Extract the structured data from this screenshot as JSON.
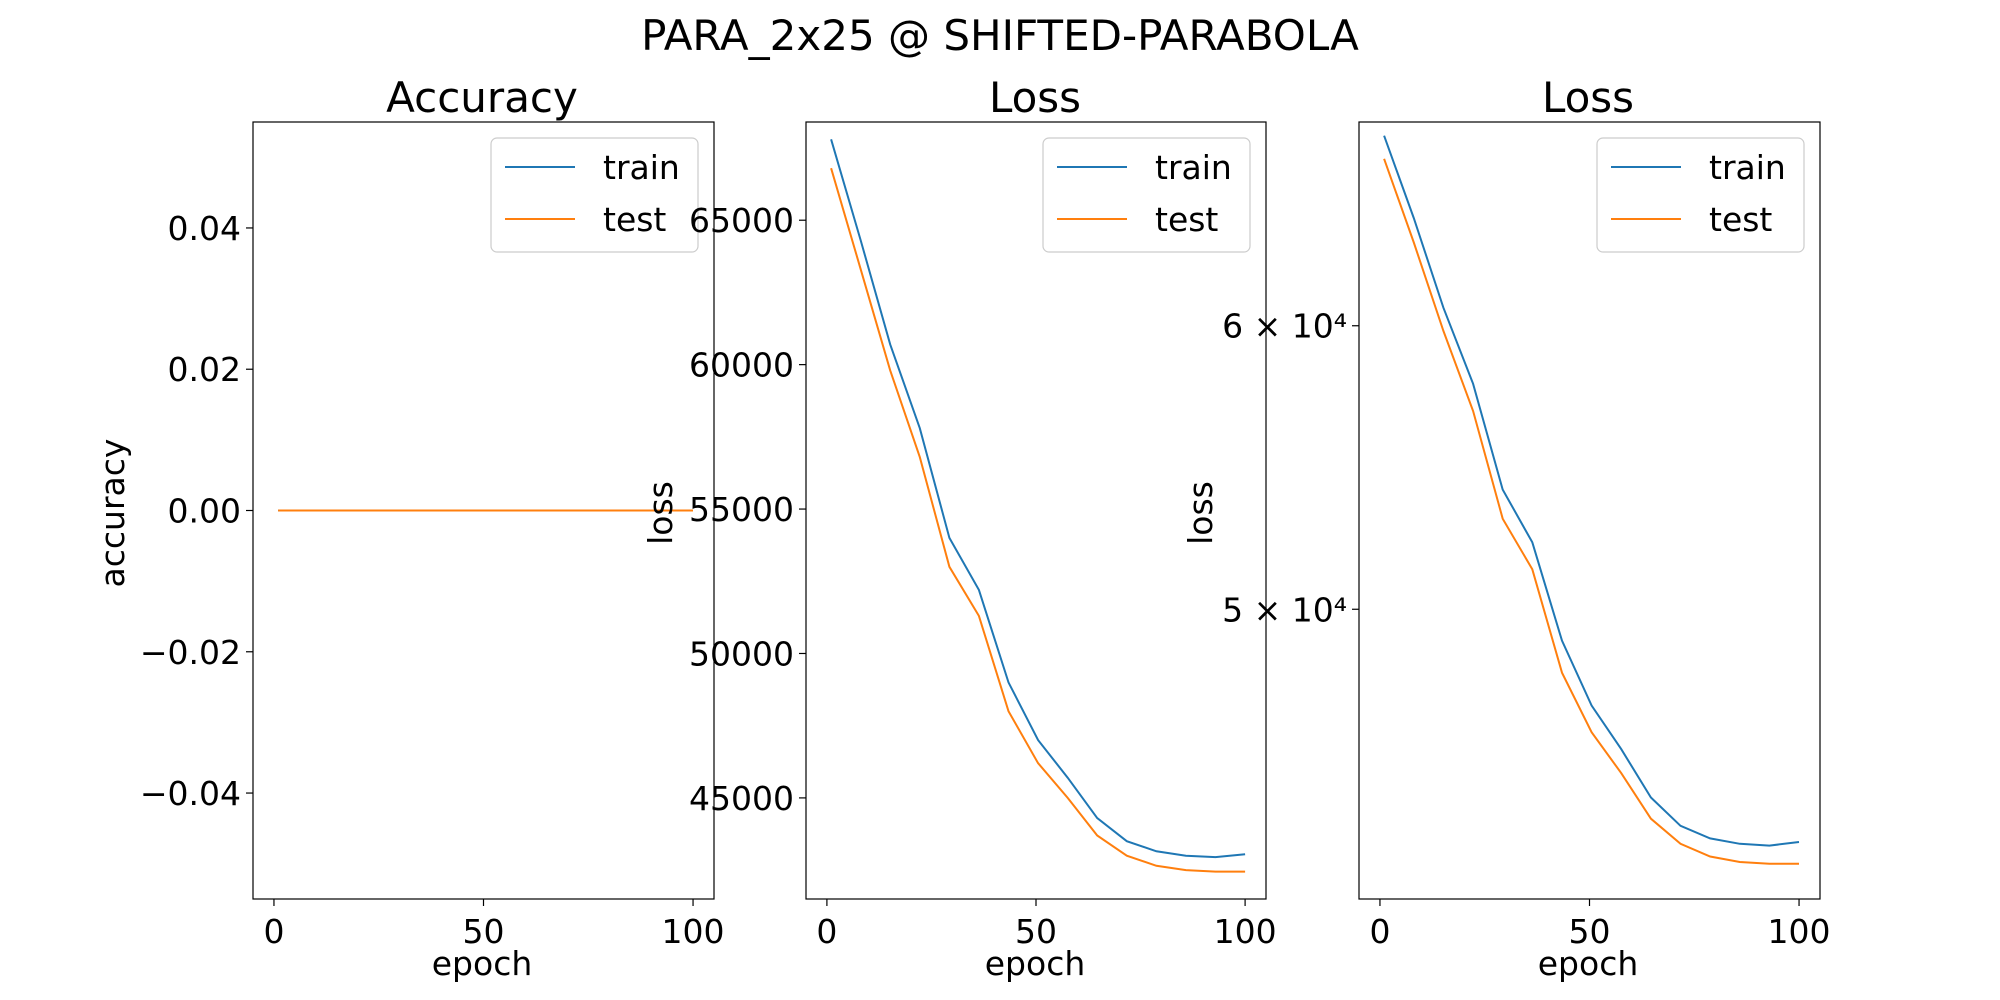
{
  "suptitle": "PARA_2x25 @ SHIFTED-PARABOLA",
  "colors": {
    "train": "#1f77b4",
    "test": "#ff7f0e",
    "axis": "#000000",
    "legend_border": "#cccccc"
  },
  "chart_data": [
    {
      "type": "line",
      "title": "Accuracy",
      "xlabel": "epoch",
      "ylabel": "accuracy",
      "xlim": [
        -5,
        105
      ],
      "ylim": [
        -0.055,
        0.055
      ],
      "yscale": "linear",
      "xticks": [
        0,
        50,
        100
      ],
      "xtick_labels": [
        "0",
        "50",
        "100"
      ],
      "yticks": [
        -0.04,
        -0.02,
        0.0,
        0.02,
        0.04
      ],
      "ytick_labels": [
        "−0.04",
        "−0.02",
        "0.00",
        "0.02",
        "0.04"
      ],
      "legend": "top-right",
      "series": [
        {
          "name": "train",
          "x_start": 1,
          "x_end": 100,
          "values": [
            0,
            0
          ]
        },
        {
          "name": "test",
          "x_start": 1,
          "x_end": 100,
          "values": [
            0,
            0
          ]
        }
      ]
    },
    {
      "type": "line",
      "title": "Loss",
      "xlabel": "epoch",
      "ylabel": "loss",
      "xlim": [
        -5,
        105
      ],
      "ylim": [
        41500,
        68400
      ],
      "yscale": "linear",
      "xticks": [
        0,
        50,
        100
      ],
      "xtick_labels": [
        "0",
        "50",
        "100"
      ],
      "yticks": [
        45000,
        50000,
        55000,
        60000,
        65000
      ],
      "ytick_labels": [
        "45000",
        "50000",
        "55000",
        "60000",
        "65000"
      ],
      "legend": "top-right",
      "series": [
        {
          "name": "train",
          "x_start": 1,
          "x_end": 100,
          "values": [
            67800,
            64300,
            60700,
            57800,
            54000,
            52200,
            49000,
            47000,
            45700,
            44300,
            43500,
            43150,
            43000,
            42950,
            43050
          ]
        },
        {
          "name": "test",
          "x_start": 1,
          "x_end": 100,
          "values": [
            66800,
            63300,
            59800,
            56800,
            53000,
            51300,
            48000,
            46200,
            45000,
            43700,
            43000,
            42650,
            42500,
            42450,
            42450
          ]
        }
      ]
    },
    {
      "type": "line",
      "title": "Loss",
      "xlabel": "epoch",
      "ylabel": "loss",
      "xlim": [
        -5,
        105
      ],
      "ylim": [
        41500,
        68400
      ],
      "yscale": "log",
      "xticks": [
        0,
        50,
        100
      ],
      "xtick_labels": [
        "0",
        "50",
        "100"
      ],
      "yticks": [
        50000,
        60000
      ],
      "ytick_labels": [
        "5 × 10⁴",
        "6 × 10⁴"
      ],
      "legend": "top-right",
      "series": [
        {
          "name": "train",
          "x_start": 1,
          "x_end": 100,
          "values": [
            67800,
            64300,
            60700,
            57800,
            54000,
            52200,
            49000,
            47000,
            45700,
            44300,
            43500,
            43150,
            43000,
            42950,
            43050
          ]
        },
        {
          "name": "test",
          "x_start": 1,
          "x_end": 100,
          "values": [
            66800,
            63300,
            59800,
            56800,
            53000,
            51300,
            48000,
            46200,
            45000,
            43700,
            43000,
            42650,
            42500,
            42450,
            42450
          ]
        }
      ]
    }
  ]
}
